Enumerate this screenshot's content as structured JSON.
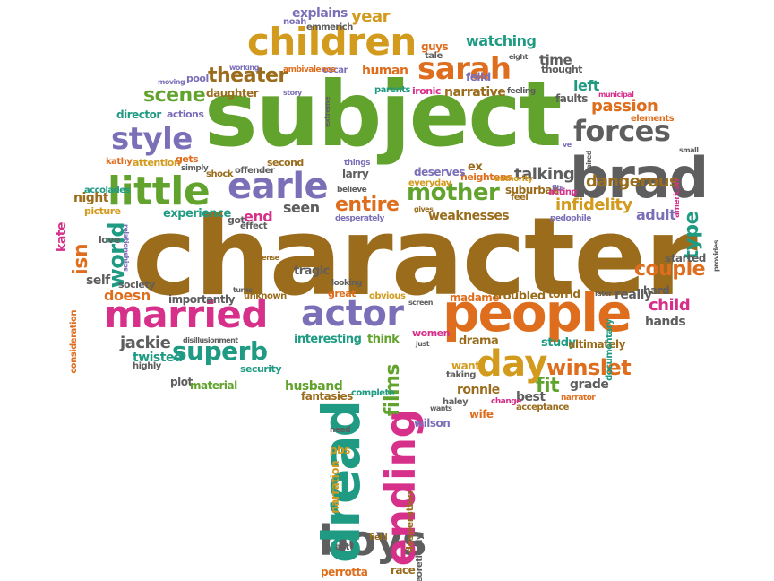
{
  "colors": {
    "green": "#62a32e",
    "brown": "#9a6c1c",
    "purple": "#7b6fb8",
    "pink": "#d6308a",
    "orange": "#de6e1e",
    "teal": "#1f9a83",
    "gray": "#5e5e5e",
    "gold": "#d39b1e"
  },
  "words": {
    "subject": "subject",
    "character": "character",
    "people": "people",
    "brad": "brad",
    "married": "married",
    "actor": "actor",
    "children": "children",
    "boys": "boys",
    "dread": "dread",
    "little": "little",
    "earle": "earle",
    "sarah": "sarah",
    "day": "day",
    "ending": "ending",
    "forces": "forces",
    "style": "style",
    "mother": "mother",
    "superb": "superb",
    "winslet": "winslet",
    "theater": "theater",
    "scene": "scene",
    "entire": "entire",
    "couple": "couple",
    "infidelity": "infidelity",
    "passion": "passion",
    "world": "world",
    "isn": "isn",
    "watching": "watching",
    "dangerous": "dangerous",
    "talking": "talking",
    "fit": "fit",
    "child": "child",
    "type": "type",
    "adult": "adult",
    "films": "films",
    "humour": "humour",
    "explains": "explains",
    "year": "year",
    "human": "human",
    "narrative": "narrative",
    "time": "time",
    "left": "left",
    "faults": "faults",
    "pool": "pool",
    "daughter": "daughter",
    "director": "director",
    "actions": "actions",
    "kathy": "kathy",
    "attention": "attention",
    "accolades": "accolades",
    "night": "night",
    "kate": "kate",
    "picture": "picture",
    "experience": "experience",
    "self": "self",
    "society": "society",
    "doesn": "doesn",
    "jackie": "jackie",
    "twisted": "twisted",
    "highly": "highly",
    "plot": "plot",
    "material": "material",
    "security": "security",
    "end": "end",
    "seen": "seen",
    "husband": "husband",
    "fantasies": "fantasies",
    "interesting": "interesting",
    "think": "think",
    "importantly": "importantly",
    "unknown": "unknown",
    "tragic": "tragic",
    "madame": "madame",
    "troubled": "troubled",
    "torrid": "torrid",
    "really": "really",
    "hard": "hard",
    "hands": "hands",
    "study": "study",
    "ultimately": "ultimately",
    "drama": "drama",
    "want": "want",
    "ronnie": "ronnie",
    "best": "best",
    "grade": "grade",
    "wife": "wife",
    "wilson": "wilson",
    "narration": "narration",
    "pbs": "pbs",
    "perrotta": "perrotta",
    "race": "race",
    "desperation": "desperation",
    "weaknesses": "weaknesses",
    "suburban": "suburban",
    "ex": "ex",
    "heightens": "heightens",
    "deserves": "deserves",
    "everyday": "everyday",
    "emmerich": "emmerich",
    "noah": "noah",
    "guys": "guys",
    "tale": "tale",
    "feild": "feild",
    "oscar": "oscar",
    "parents": "parents",
    "ironic": "ironic",
    "feeling": "feeling",
    "thought": "thought",
    "elements": "elements",
    "started": "started",
    "women": "women",
    "acceptance": "acceptance",
    "change": "change",
    "narrator": "narrator",
    "gets": "gets",
    "simply": "simply",
    "shock": "shock",
    "offender": "offender",
    "second": "second",
    "effect": "effect",
    "got": "got",
    "love": "love",
    "larry": "larry",
    "things": "things",
    "believe": "believe",
    "desperately": "desperately",
    "great": "great",
    "looking": "looking",
    "obvious": "obvious",
    "pedophile": "pedophile",
    "feel": "feel",
    "acting": "acting",
    "authority": "authority",
    "taking": "taking",
    "complete": "complete",
    "haley": "haley",
    "need": "need",
    "act": "act",
    "field": "field",
    "theoretically": "theoretically",
    "moving": "moving",
    "working": "working",
    "ambivalence": "ambivalence",
    "story": "story",
    "extreme": "extreme",
    "eight": "eight",
    "municipal": "municipal",
    "small": "small",
    "american": "american",
    "provides": "provides",
    "documentary": "documentary",
    "consideration": "consideration",
    "disillusionment": "disillusionment",
    "relationships": "relationships",
    "sense": "sense",
    "turns": "turns",
    "screen": "screen",
    "just": "just",
    "gives": "gives",
    "later": "later",
    "ve": "ve",
    "aired": "aired",
    "fits": "fits",
    "wants": "wants"
  }
}
